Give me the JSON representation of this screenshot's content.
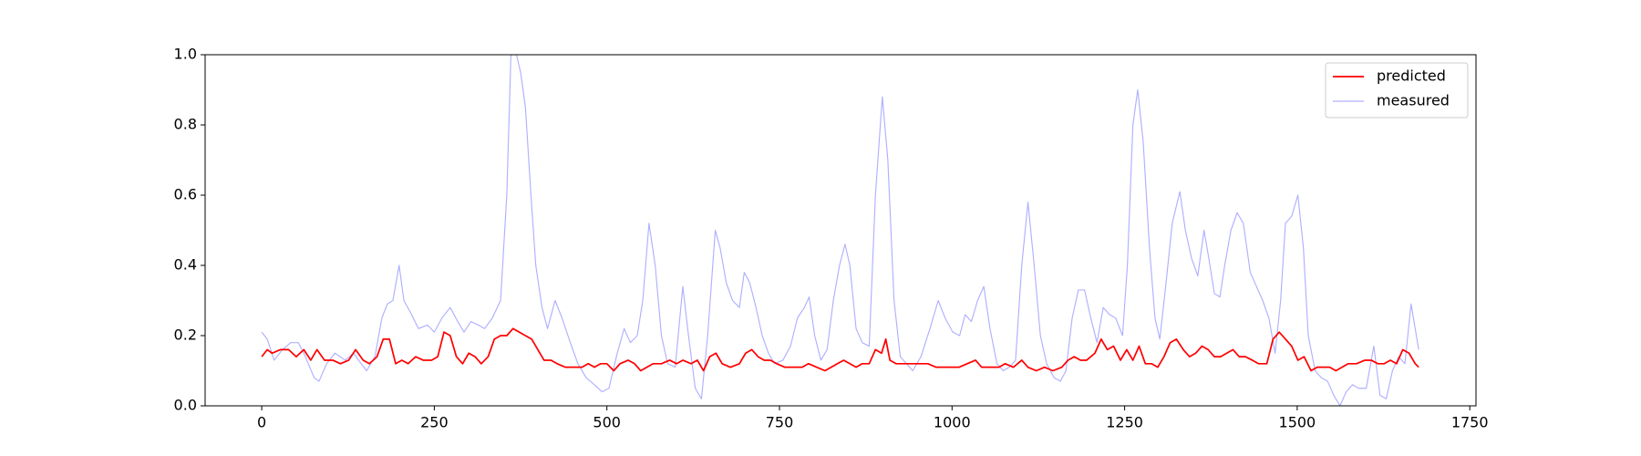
{
  "chart_data": {
    "type": "line",
    "xlim": [
      -82,
      1759
    ],
    "xticks": [
      0,
      250,
      500,
      750,
      1000,
      1250,
      1500,
      1750
    ],
    "ylim": [
      0,
      1
    ],
    "yticks": [
      {
        "value": 0,
        "label": "0.0"
      },
      0.2,
      0.4,
      0.6,
      0.8,
      {
        "value": 1,
        "label": "1.0"
      }
    ],
    "grid": false,
    "legend": "upper right",
    "series": [
      {
        "name": "predicted",
        "color": "#ff0000",
        "width": 1.5,
        "x": [
          0,
          8,
          15,
          27,
          39,
          50,
          61,
          71,
          80,
          91,
          103,
          114,
          126,
          136,
          147,
          156,
          167,
          176,
          185,
          194,
          203,
          212,
          223,
          234,
          246,
          255,
          264,
          273,
          282,
          291,
          300,
          309,
          318,
          328,
          337,
          346,
          355,
          364,
          373,
          382,
          391,
          400,
          409,
          419,
          428,
          440,
          452,
          464,
          473,
          482,
          491,
          500,
          510,
          519,
          531,
          540,
          549,
          558,
          567,
          579,
          591,
          601,
          610,
          622,
          631,
          640,
          649,
          658,
          667,
          679,
          692,
          701,
          710,
          719,
          728,
          737,
          746,
          758,
          770,
          783,
          792,
          804,
          816,
          825,
          834,
          843,
          852,
          861,
          870,
          880,
          889,
          898,
          904,
          910,
          919,
          928,
          940,
          952,
          965,
          977,
          986,
          998,
          1010,
          1022,
          1034,
          1043,
          1055,
          1068,
          1077,
          1089,
          1101,
          1110,
          1122,
          1134,
          1146,
          1159,
          1168,
          1177,
          1186,
          1195,
          1207,
          1216,
          1225,
          1234,
          1244,
          1253,
          1262,
          1271,
          1280,
          1289,
          1298,
          1307,
          1316,
          1325,
          1335,
          1344,
          1353,
          1362,
          1371,
          1380,
          1389,
          1398,
          1407,
          1416,
          1425,
          1435,
          1444,
          1456,
          1465,
          1474,
          1483,
          1492,
          1501,
          1510,
          1520,
          1529,
          1538,
          1547,
          1556,
          1565,
          1574,
          1586,
          1598,
          1607,
          1617,
          1626,
          1635,
          1644,
          1653,
          1662,
          1671,
          1676
        ],
        "values": [
          0.14,
          0.16,
          0.15,
          0.16,
          0.16,
          0.14,
          0.16,
          0.13,
          0.16,
          0.13,
          0.13,
          0.12,
          0.13,
          0.16,
          0.13,
          0.12,
          0.14,
          0.19,
          0.19,
          0.12,
          0.13,
          0.12,
          0.14,
          0.13,
          0.13,
          0.14,
          0.21,
          0.2,
          0.14,
          0.12,
          0.15,
          0.14,
          0.12,
          0.14,
          0.19,
          0.2,
          0.2,
          0.22,
          0.21,
          0.2,
          0.19,
          0.16,
          0.13,
          0.13,
          0.12,
          0.11,
          0.11,
          0.11,
          0.12,
          0.11,
          0.12,
          0.12,
          0.1,
          0.12,
          0.13,
          0.12,
          0.1,
          0.11,
          0.12,
          0.12,
          0.13,
          0.12,
          0.13,
          0.12,
          0.13,
          0.1,
          0.14,
          0.15,
          0.12,
          0.11,
          0.12,
          0.15,
          0.16,
          0.14,
          0.13,
          0.13,
          0.12,
          0.11,
          0.11,
          0.11,
          0.12,
          0.11,
          0.1,
          0.11,
          0.12,
          0.13,
          0.12,
          0.11,
          0.12,
          0.12,
          0.16,
          0.15,
          0.19,
          0.13,
          0.12,
          0.12,
          0.12,
          0.12,
          0.12,
          0.11,
          0.11,
          0.11,
          0.11,
          0.12,
          0.13,
          0.11,
          0.11,
          0.11,
          0.12,
          0.11,
          0.13,
          0.11,
          0.1,
          0.11,
          0.1,
          0.11,
          0.13,
          0.14,
          0.13,
          0.13,
          0.15,
          0.19,
          0.16,
          0.17,
          0.13,
          0.16,
          0.13,
          0.17,
          0.12,
          0.12,
          0.11,
          0.14,
          0.18,
          0.19,
          0.16,
          0.14,
          0.15,
          0.17,
          0.16,
          0.14,
          0.14,
          0.15,
          0.16,
          0.14,
          0.14,
          0.13,
          0.12,
          0.12,
          0.19,
          0.21,
          0.19,
          0.17,
          0.13,
          0.14,
          0.1,
          0.11,
          0.11,
          0.11,
          0.1,
          0.11,
          0.12,
          0.12,
          0.13,
          0.13,
          0.12,
          0.12,
          0.13,
          0.12,
          0.16,
          0.15,
          0.12,
          0.11
        ]
      },
      {
        "name": "measured",
        "color": "#b0b0ff",
        "width": 1,
        "x": [
          0,
          8,
          18,
          30,
          42,
          53,
          61,
          76,
          83,
          94,
          106,
          121,
          133,
          144,
          152,
          164,
          174,
          182,
          190,
          199,
          206,
          217,
          227,
          240,
          250,
          261,
          273,
          284,
          293,
          303,
          314,
          323,
          334,
          346,
          355,
          361,
          369,
          375,
          382,
          390,
          397,
          406,
          414,
          425,
          435,
          447,
          458,
          470,
          482,
          493,
          503,
          515,
          525,
          534,
          544,
          552,
          561,
          570,
          579,
          588,
          599,
          610,
          617,
          628,
          637,
          646,
          657,
          664,
          673,
          682,
          692,
          699,
          707,
          716,
          725,
          734,
          743,
          755,
          766,
          776,
          786,
          793,
          801,
          810,
          819,
          828,
          837,
          845,
          852,
          861,
          870,
          880,
          889,
          899,
          907,
          916,
          925,
          934,
          943,
          955,
          968,
          980,
          990,
          1001,
          1011,
          1019,
          1028,
          1037,
          1046,
          1055,
          1065,
          1074,
          1083,
          1092,
          1101,
          1110,
          1119,
          1128,
          1137,
          1148,
          1157,
          1165,
          1174,
          1183,
          1192,
          1201,
          1210,
          1219,
          1228,
          1237,
          1247,
          1254,
          1262,
          1269,
          1277,
          1286,
          1294,
          1301,
          1310,
          1319,
          1330,
          1338,
          1347,
          1356,
          1365,
          1372,
          1380,
          1388,
          1395,
          1404,
          1413,
          1422,
          1432,
          1441,
          1450,
          1459,
          1468,
          1476,
          1483,
          1492,
          1501,
          1509,
          1516,
          1526,
          1535,
          1544,
          1553,
          1562,
          1571,
          1580,
          1589,
          1600,
          1611,
          1620,
          1629,
          1638,
          1647,
          1656,
          1665,
          1676
        ],
        "values": [
          0.21,
          0.19,
          0.13,
          0.16,
          0.18,
          0.18,
          0.15,
          0.08,
          0.07,
          0.12,
          0.15,
          0.13,
          0.15,
          0.12,
          0.1,
          0.14,
          0.25,
          0.29,
          0.3,
          0.4,
          0.3,
          0.26,
          0.22,
          0.23,
          0.21,
          0.25,
          0.28,
          0.24,
          0.21,
          0.24,
          0.23,
          0.22,
          0.25,
          0.3,
          0.6,
          1.0,
          1.0,
          0.95,
          0.85,
          0.6,
          0.4,
          0.28,
          0.22,
          0.3,
          0.25,
          0.18,
          0.12,
          0.08,
          0.06,
          0.04,
          0.05,
          0.15,
          0.22,
          0.18,
          0.2,
          0.3,
          0.52,
          0.4,
          0.2,
          0.12,
          0.11,
          0.34,
          0.22,
          0.05,
          0.02,
          0.2,
          0.5,
          0.45,
          0.35,
          0.3,
          0.28,
          0.38,
          0.35,
          0.28,
          0.2,
          0.15,
          0.12,
          0.13,
          0.17,
          0.25,
          0.28,
          0.31,
          0.2,
          0.13,
          0.16,
          0.3,
          0.4,
          0.46,
          0.4,
          0.22,
          0.18,
          0.17,
          0.6,
          0.88,
          0.7,
          0.3,
          0.14,
          0.12,
          0.1,
          0.14,
          0.22,
          0.3,
          0.25,
          0.21,
          0.2,
          0.26,
          0.24,
          0.3,
          0.34,
          0.22,
          0.12,
          0.1,
          0.11,
          0.13,
          0.4,
          0.58,
          0.4,
          0.2,
          0.12,
          0.08,
          0.07,
          0.1,
          0.25,
          0.33,
          0.33,
          0.25,
          0.18,
          0.28,
          0.26,
          0.25,
          0.2,
          0.4,
          0.8,
          0.9,
          0.75,
          0.45,
          0.25,
          0.19,
          0.35,
          0.52,
          0.61,
          0.5,
          0.42,
          0.37,
          0.5,
          0.42,
          0.32,
          0.31,
          0.4,
          0.5,
          0.55,
          0.52,
          0.38,
          0.34,
          0.3,
          0.25,
          0.15,
          0.3,
          0.52,
          0.54,
          0.6,
          0.45,
          0.2,
          0.1,
          0.08,
          0.07,
          0.03,
          0.0,
          0.04,
          0.06,
          0.05,
          0.05,
          0.17,
          0.03,
          0.02,
          0.1,
          0.14,
          0.12,
          0.29,
          0.16
        ]
      }
    ]
  }
}
